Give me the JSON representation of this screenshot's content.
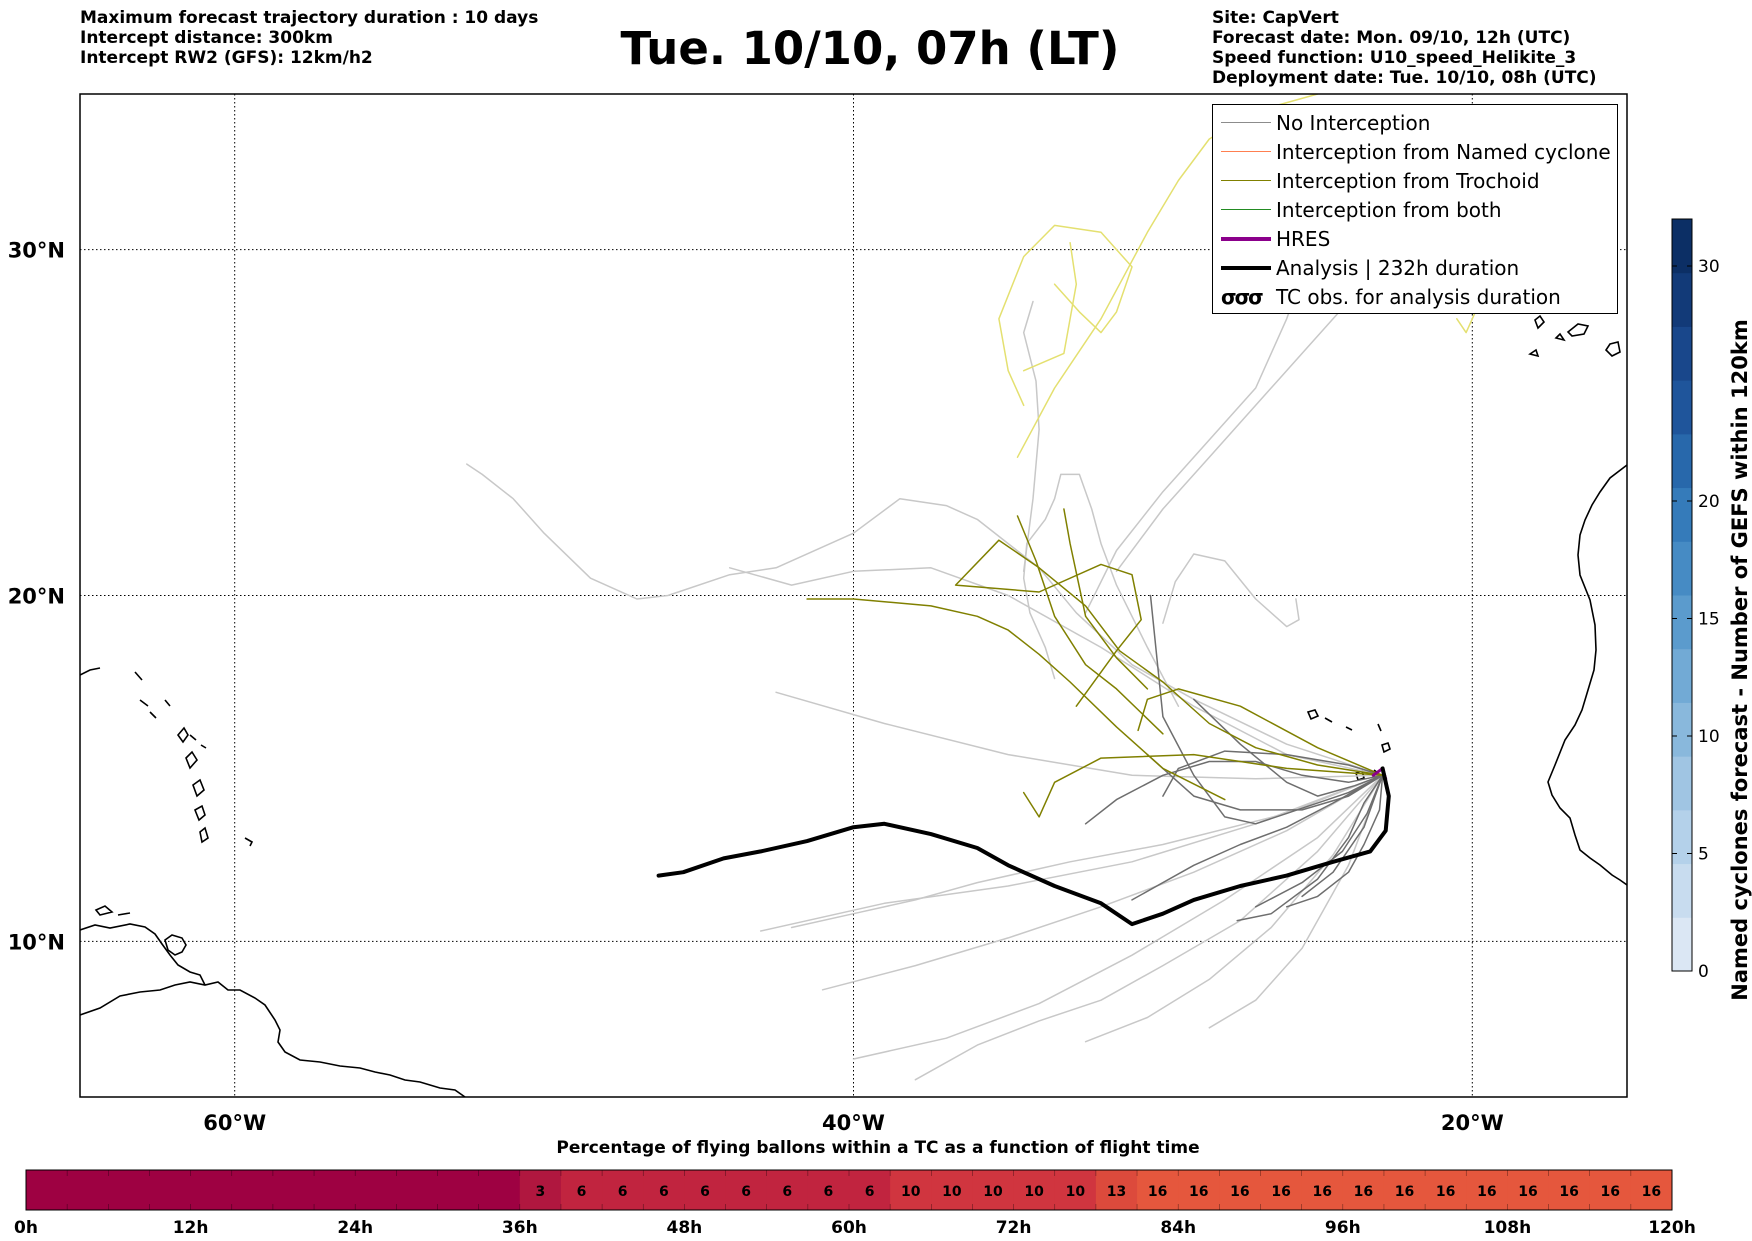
{
  "header": {
    "left_lines": [
      "Maximum forecast trajectory duration : 10 days",
      "Intercept distance: 300km",
      "Intercept RW2 (GFS):  12km/h2"
    ],
    "title": "Tue. 10/10, 07h (LT)",
    "right_lines": [
      "Site: CapVert",
      "Forecast date: Mon. 09/10, 12h (UTC)",
      "Speed function: U10_speed_Helikite_3",
      "Deployment date: Tue. 10/10, 08h (UTC)"
    ]
  },
  "legend": [
    {
      "label": "No Interception",
      "color": "#8c8c8c",
      "width": 1.5,
      "kind": "line"
    },
    {
      "label": "Interception from Named cyclone",
      "color": "#ff7f50",
      "width": 1.5,
      "kind": "line"
    },
    {
      "label": "Interception from Trochoid",
      "color": "#808000",
      "width": 1.5,
      "kind": "line"
    },
    {
      "label": "Interception from both",
      "color": "#228b22",
      "width": 1.5,
      "kind": "line"
    },
    {
      "label": "HRES",
      "color": "#8b008b",
      "width": 4,
      "kind": "line"
    },
    {
      "label": "Analysis | 232h duration",
      "color": "#000000",
      "width": 4,
      "kind": "line"
    },
    {
      "label": "TC obs. for analysis duration",
      "color": "#000000",
      "width": 0,
      "kind": "symbol",
      "symbol": "σσσ"
    }
  ],
  "chart_data": {
    "type": "line",
    "map": {
      "lon_range": [
        -65,
        -15
      ],
      "lat_range": [
        5.5,
        34.5
      ],
      "lon_ticks": [
        -60,
        -40,
        -20
      ],
      "lon_tick_labels": [
        "60°W",
        "40°W",
        "20°W"
      ],
      "lat_ticks": [
        10,
        20,
        30
      ],
      "lat_tick_labels": [
        "10°N",
        "20°N",
        "30°N"
      ],
      "grid": true
    },
    "series": [
      {
        "name": "Analysis | 232h duration",
        "color": "#000000",
        "lon": [
          -46.3,
          -45.5,
          -44.2,
          -43.0,
          -41.5,
          -40.0,
          -39.0,
          -37.5,
          -36.0,
          -35.0,
          -33.5,
          -32.0,
          -31.0,
          -30.0,
          -29.0,
          -27.5,
          -26.0,
          -24.5,
          -23.3,
          -22.8,
          -22.7,
          -22.9
        ],
        "lat": [
          11.9,
          12.0,
          12.4,
          12.6,
          12.9,
          13.3,
          13.4,
          13.1,
          12.7,
          12.2,
          11.6,
          11.1,
          10.5,
          10.8,
          11.2,
          11.6,
          11.9,
          12.3,
          12.6,
          13.2,
          14.2,
          15.0
        ]
      },
      {
        "name": "HRES",
        "color": "#8b008b",
        "lon": [
          -23.2,
          -22.9,
          -22.8
        ],
        "lat": [
          14.8,
          15.0,
          14.7
        ]
      }
    ],
    "trajectories": {
      "trochoid": [
        {
          "lon": [
            -22.9,
            -25.0,
            -27.5,
            -29.5,
            -30.5,
            -30.8
          ],
          "lat": [
            14.8,
            15.6,
            16.8,
            17.3,
            17.0,
            16.1
          ]
        },
        {
          "lon": [
            -22.9,
            -25.0,
            -27.0,
            -28.5,
            -30.0,
            -31.4,
            -32.5,
            -34.0,
            -35.3,
            -36.7,
            -34.0,
            -32.0,
            -31.0,
            -30.7,
            -31.5,
            -32.8
          ],
          "lat": [
            14.8,
            15.1,
            15.6,
            16.3,
            17.5,
            18.4,
            19.7,
            20.8,
            21.6,
            20.3,
            20.1,
            20.9,
            20.6,
            19.3,
            18.4,
            16.8
          ]
        },
        {
          "lon": [
            -22.9,
            -26.0,
            -29.0,
            -32.0,
            -33.5,
            -34.0,
            -34.5
          ],
          "lat": [
            14.8,
            15.0,
            15.4,
            15.3,
            14.6,
            13.6,
            14.3
          ]
        },
        {
          "lon": [
            -28.0,
            -30.0,
            -31.5,
            -33.0,
            -34.0,
            -35.0,
            -36.0,
            -37.5,
            -40.0,
            -41.5
          ],
          "lat": [
            14.1,
            15.0,
            16.2,
            17.5,
            18.3,
            19.0,
            19.4,
            19.7,
            19.9,
            19.9
          ]
        },
        {
          "lon": [
            -30.0,
            -31.5,
            -32.5,
            -33.5,
            -34.1,
            -34.7
          ],
          "lat": [
            16.0,
            17.3,
            18.0,
            19.4,
            21.0,
            22.3
          ]
        },
        {
          "lon": [
            -30.5,
            -31.5,
            -32.5,
            -33.0,
            -33.2
          ],
          "lat": [
            17.3,
            18.2,
            19.4,
            21.5,
            22.5
          ]
        }
      ],
      "trochoid_light": [
        {
          "lon": [
            -34.7,
            -33.5,
            -32.0,
            -30.5,
            -29.5,
            -28.5,
            -27.0,
            -25.0
          ],
          "lat": [
            24.0,
            26.0,
            28.0,
            30.5,
            32.0,
            33.2,
            34.0,
            34.5
          ]
        },
        {
          "lon": [
            -34.5,
            -35.0,
            -35.3,
            -34.5,
            -33.5,
            -32.0,
            -31.0,
            -31.5,
            -32.0,
            -32.7,
            -33.5
          ],
          "lat": [
            25.5,
            26.5,
            28.0,
            29.8,
            30.7,
            30.5,
            29.5,
            28.2,
            27.6,
            28.2,
            29.0
          ]
        },
        {
          "lon": [
            -33.0,
            -32.8,
            -33.2,
            -34.5
          ],
          "lat": [
            30.2,
            29.0,
            27.0,
            26.5
          ]
        },
        {
          "lon": [
            -20.5,
            -20.2,
            -19.9,
            -20.3
          ],
          "lat": [
            28.0,
            27.6,
            28.2,
            28.6
          ]
        }
      ],
      "no_interception_dark": [
        {
          "lon": [
            -22.9,
            -24.0,
            -26.0,
            -27.0,
            -28.0,
            -29.0,
            -30.0,
            -30.4
          ],
          "lat": [
            14.8,
            14.3,
            13.7,
            13.4,
            13.6,
            14.8,
            16.5,
            20.0
          ]
        },
        {
          "lon": [
            -22.9,
            -23.5,
            -24.0,
            -25.0,
            -26.5,
            -27.6
          ],
          "lat": [
            14.8,
            14.0,
            13.0,
            11.8,
            10.8,
            10.6
          ]
        },
        {
          "lon": [
            -22.9,
            -23.0,
            -23.5,
            -24.0,
            -25.0,
            -26.0
          ],
          "lat": [
            14.8,
            13.8,
            12.8,
            12.0,
            11.3,
            11.0
          ]
        },
        {
          "lon": [
            -22.9,
            -23.4,
            -24.2,
            -25.5,
            -27.0
          ],
          "lat": [
            14.8,
            13.7,
            12.6,
            11.7,
            11.0
          ]
        },
        {
          "lon": [
            -22.9,
            -24.5,
            -26.0,
            -27.5,
            -29.0,
            -31.0
          ],
          "lat": [
            14.8,
            14.0,
            13.3,
            12.8,
            12.2,
            11.2
          ]
        },
        {
          "lon": [
            -22.9,
            -24.0,
            -25.5,
            -27.0,
            -28.5,
            -30.0,
            -31.5,
            -32.5
          ],
          "lat": [
            14.8,
            14.6,
            14.8,
            15.2,
            15.2,
            14.8,
            14.1,
            13.4
          ]
        },
        {
          "lon": [
            -22.9,
            -24.0,
            -25.5,
            -27.5,
            -29.0,
            -30.5
          ],
          "lat": [
            14.8,
            14.2,
            13.8,
            13.8,
            14.2,
            15.4
          ]
        },
        {
          "lon": [
            -22.9,
            -23.8,
            -25.0,
            -26.0,
            -27.5,
            -29.0
          ],
          "lat": [
            14.8,
            14.5,
            14.2,
            14.6,
            15.7,
            17.0
          ]
        },
        {
          "lon": [
            -22.9,
            -23.5,
            -24.5,
            -25.5
          ],
          "lat": [
            14.8,
            13.3,
            12.0,
            11.3
          ]
        },
        {
          "lon": [
            -22.9,
            -24.0,
            -26.0,
            -28.0,
            -29.5,
            -30.0
          ],
          "lat": [
            14.8,
            15.1,
            15.4,
            15.5,
            15.0,
            14.2
          ]
        }
      ],
      "no_interception_light": [
        {
          "lon": [
            -22.9,
            -26.0,
            -30.0,
            -33.0,
            -36.0,
            -38.0,
            -40.0,
            -42.0
          ],
          "lat": [
            14.8,
            13.7,
            12.8,
            12.3,
            11.7,
            11.2,
            10.8,
            10.4
          ]
        },
        {
          "lon": [
            -22.9,
            -26.0,
            -29.0,
            -32.0,
            -35.0,
            -38.0,
            -41.0
          ],
          "lat": [
            14.8,
            13.2,
            12.0,
            11.0,
            10.1,
            9.3,
            8.6
          ]
        },
        {
          "lon": [
            -22.9,
            -25.0,
            -28.0,
            -31.0,
            -34.0,
            -37.0,
            -40.0
          ],
          "lat": [
            14.8,
            13.0,
            11.2,
            9.6,
            8.2,
            7.2,
            6.6
          ]
        },
        {
          "lon": [
            -22.9,
            -25.0,
            -27.5,
            -30.0,
            -32.0,
            -34.0,
            -36.0,
            -38.0
          ],
          "lat": [
            14.8,
            12.6,
            10.6,
            9.3,
            8.3,
            7.7,
            7.0,
            6.0
          ]
        },
        {
          "lon": [
            -22.9,
            -24.5,
            -26.5,
            -28.5,
            -30.5,
            -32.5
          ],
          "lat": [
            14.8,
            12.5,
            10.4,
            8.9,
            7.8,
            7.1
          ]
        },
        {
          "lon": [
            -22.9,
            -24.0,
            -25.5,
            -27.0,
            -28.5
          ],
          "lat": [
            14.8,
            12.2,
            9.8,
            8.3,
            7.5
          ]
        },
        {
          "lon": [
            -22.9,
            -27.0,
            -31.0,
            -35.0,
            -39.0,
            -43.0
          ],
          "lat": [
            14.8,
            13.4,
            12.3,
            11.6,
            11.1,
            10.3
          ]
        },
        {
          "lon": [
            -22.9,
            -27.0,
            -31.0,
            -35.0,
            -39.0,
            -42.5
          ],
          "lat": [
            14.8,
            14.7,
            14.8,
            15.4,
            16.3,
            17.2
          ]
        },
        {
          "lon": [
            -22.9,
            -26.0,
            -29.0,
            -31.0,
            -32.8,
            -34.0,
            -35.0,
            -36.0,
            -37.0,
            -38.5,
            -40.0,
            -42.5,
            -44.0,
            -46.0,
            -47.0,
            -48.5,
            -50.0,
            -51.0,
            -52.0,
            -52.5
          ],
          "lat": [
            14.8,
            15.7,
            17.0,
            18.0,
            19.5,
            20.8,
            21.5,
            22.2,
            22.6,
            22.8,
            21.8,
            20.8,
            20.6,
            20.0,
            19.9,
            20.5,
            21.8,
            22.8,
            23.5,
            23.8
          ]
        },
        {
          "lon": [
            -22.9,
            -26.0,
            -29.0,
            -32.0,
            -35.0,
            -37.5,
            -40.0,
            -42.0,
            -44.0
          ],
          "lat": [
            14.8,
            15.4,
            16.8,
            18.5,
            20.0,
            20.8,
            20.7,
            20.3,
            20.8
          ]
        },
        {
          "lon": [
            -29.5,
            -30.5,
            -31.5,
            -32.0,
            -32.3,
            -32.7,
            -33.3,
            -33.5,
            -33.8,
            -34.4,
            -34.5,
            -34.3,
            -33.8,
            -33.5
          ],
          "lat": [
            16.8,
            18.5,
            20.3,
            21.5,
            22.5,
            23.5,
            23.5,
            22.8,
            22.2,
            21.5,
            20.5,
            19.5,
            18.5,
            17.6
          ]
        },
        {
          "lon": [
            -31.5,
            -30.0,
            -28.5,
            -27.0,
            -25.5,
            -24.0,
            -23.0,
            -22.0,
            -21.0
          ],
          "lat": [
            20.7,
            22.5,
            24.0,
            25.5,
            27.0,
            28.5,
            29.5,
            30.8,
            32.5
          ]
        },
        {
          "lon": [
            -32.5,
            -31.5,
            -30.0,
            -28.5,
            -27.0,
            -26.0,
            -25.0
          ],
          "lat": [
            19.5,
            21.3,
            23.0,
            24.5,
            26.0,
            28.0,
            30.5
          ]
        },
        {
          "lon": [
            -34.5,
            -34.2,
            -34.0,
            -34.1,
            -34.5,
            -34.2
          ],
          "lat": [
            20.7,
            22.8,
            24.8,
            26.2,
            27.6,
            28.5
          ]
        },
        {
          "lon": [
            -30.0,
            -29.6,
            -29.0,
            -28.0,
            -27.0,
            -26.0,
            -25.6,
            -25.7
          ],
          "lat": [
            19.2,
            20.4,
            21.2,
            21.0,
            19.9,
            19.1,
            19.3,
            19.9
          ]
        }
      ]
    }
  },
  "colorbar": {
    "label": "Named cyclones forecast - Number of GEFS within 120km",
    "ticks": [
      0,
      5,
      10,
      15,
      20,
      30
    ],
    "range": [
      0,
      32
    ],
    "colors": [
      "#dbe7f4",
      "#c8dcef",
      "#b4d1ea",
      "#a0c5e3",
      "#89b8dc",
      "#72aad5",
      "#5b9bcd",
      "#468bc4",
      "#357bba",
      "#2868ab",
      "#1f559b",
      "#19478b",
      "#123a78",
      "#0c2f65"
    ]
  },
  "time_bar": {
    "label": "Percentage of flying ballons within a TC as a function of flight time",
    "tick_labels": [
      "0h",
      "12h",
      "24h",
      "36h",
      "48h",
      "60h",
      "72h",
      "84h",
      "96h",
      "108h",
      "120h"
    ],
    "max_hours": 120,
    "step_hours": 3,
    "cells": [
      {
        "from": 0,
        "to": 36,
        "value": ""
      },
      {
        "from": 36,
        "to": 39,
        "value": "3"
      },
      {
        "from": 39,
        "to": 42,
        "value": "6"
      },
      {
        "from": 42,
        "to": 45,
        "value": "6"
      },
      {
        "from": 45,
        "to": 48,
        "value": "6"
      },
      {
        "from": 48,
        "to": 51,
        "value": "6"
      },
      {
        "from": 51,
        "to": 54,
        "value": "6"
      },
      {
        "from": 54,
        "to": 57,
        "value": "6"
      },
      {
        "from": 57,
        "to": 60,
        "value": "6"
      },
      {
        "from": 60,
        "to": 63,
        "value": "6"
      },
      {
        "from": 63,
        "to": 66,
        "value": "10"
      },
      {
        "from": 66,
        "to": 69,
        "value": "10"
      },
      {
        "from": 69,
        "to": 72,
        "value": "10"
      },
      {
        "from": 72,
        "to": 75,
        "value": "10"
      },
      {
        "from": 75,
        "to": 78,
        "value": "10"
      },
      {
        "from": 78,
        "to": 81,
        "value": "13"
      },
      {
        "from": 81,
        "to": 84,
        "value": "16"
      },
      {
        "from": 84,
        "to": 87,
        "value": "16"
      },
      {
        "from": 87,
        "to": 90,
        "value": "16"
      },
      {
        "from": 90,
        "to": 93,
        "value": "16"
      },
      {
        "from": 93,
        "to": 96,
        "value": "16"
      },
      {
        "from": 96,
        "to": 99,
        "value": "16"
      },
      {
        "from": 99,
        "to": 102,
        "value": "16"
      },
      {
        "from": 102,
        "to": 105,
        "value": "16"
      },
      {
        "from": 105,
        "to": 108,
        "value": "16"
      },
      {
        "from": 108,
        "to": 111,
        "value": "16"
      },
      {
        "from": 111,
        "to": 114,
        "value": "16"
      },
      {
        "from": 114,
        "to": 117,
        "value": "16"
      },
      {
        "from": 117,
        "to": 120,
        "value": "16"
      }
    ],
    "colors": {
      "0": "#9e0142",
      "3": "#b0173f",
      "6": "#c1243f",
      "10": "#d0353f",
      "13": "#dc4a3c",
      "16": "#e5573d"
    }
  }
}
